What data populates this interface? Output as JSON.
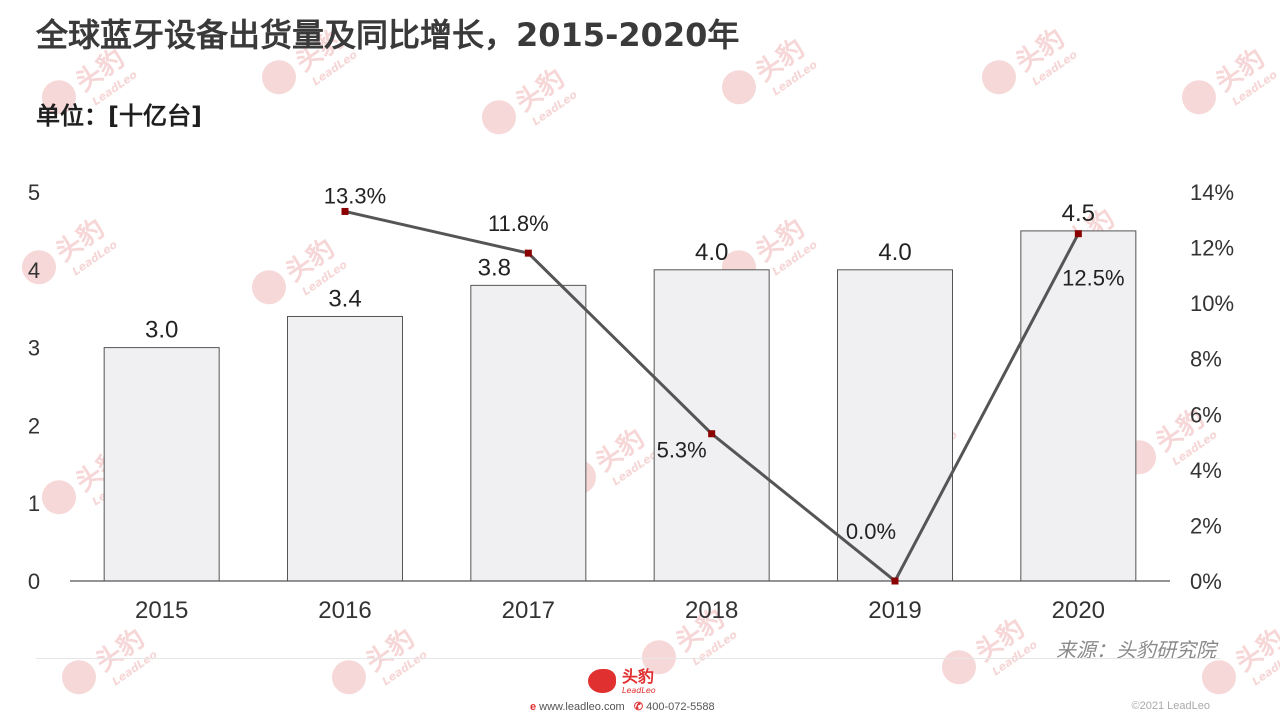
{
  "title": "全球蓝牙设备出货量及同比增长，2015-2020年",
  "unit_label": "单位：[十亿台]",
  "source": "来源：头豹研究院",
  "watermark": {
    "text": "头豹",
    "sub": "LeadLeo"
  },
  "footer": {
    "logo_text": "头豹",
    "logo_sub": "LeadLeo",
    "website": "www.leadleo.com",
    "phone": "400-072-5588",
    "copyright": "©2021 LeadLeo"
  },
  "colors": {
    "bar_fill": "#f0f0f2",
    "bar_stroke": "#555555",
    "line": "#555555",
    "marker": "#8b0000",
    "brand": "#e03030"
  },
  "chart_data": {
    "type": "bar",
    "categories": [
      "2015",
      "2016",
      "2017",
      "2018",
      "2019",
      "2020"
    ],
    "series": [
      {
        "name": "",
        "type": "bar",
        "axis": "left",
        "values": [
          3.0,
          3.4,
          3.8,
          4.0,
          4.0,
          4.5
        ],
        "labels": [
          "3.0",
          "3.4",
          "3.8",
          "4.0",
          "4.0",
          "4.5"
        ]
      },
      {
        "name": "",
        "type": "line",
        "axis": "right",
        "values": [
          null,
          13.3,
          11.8,
          5.3,
          0.0,
          12.5
        ],
        "labels": [
          "",
          "13.3%",
          "11.8%",
          "5.3%",
          "0.0%",
          "12.5%"
        ]
      }
    ],
    "y_left": {
      "min": 0,
      "max": 5,
      "ticks": [
        "0",
        "1",
        "2",
        "3",
        "4",
        "5"
      ]
    },
    "y_right": {
      "min": 0,
      "max": 14,
      "ticks": [
        "0%",
        "2%",
        "4%",
        "6%",
        "8%",
        "10%",
        "12%",
        "14%"
      ]
    },
    "grid": false,
    "legend": "none"
  }
}
